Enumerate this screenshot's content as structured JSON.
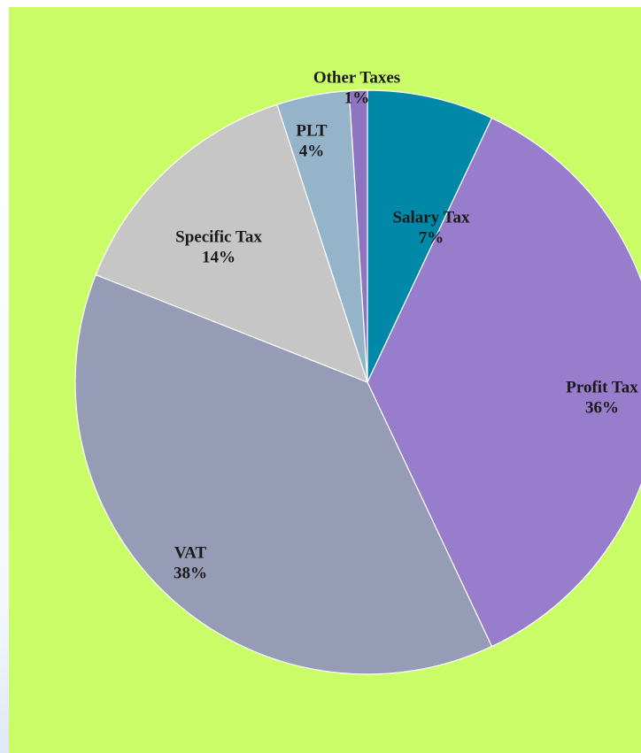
{
  "chart_data": {
    "type": "pie",
    "categories": [
      "Salary Tax",
      "Profit Tax",
      "VAT",
      "Specific Tax",
      "PLT",
      "Other Taxes"
    ],
    "values": [
      7,
      36,
      38,
      14,
      4,
      1
    ],
    "value_labels": [
      "7%",
      "36%",
      "38%",
      "14%",
      "4%",
      "1%"
    ],
    "colors": [
      "#0088a9",
      "#977dcb",
      "#979cb6",
      "#c6c6c6",
      "#95b4ca",
      "#8f74c2"
    ]
  }
}
